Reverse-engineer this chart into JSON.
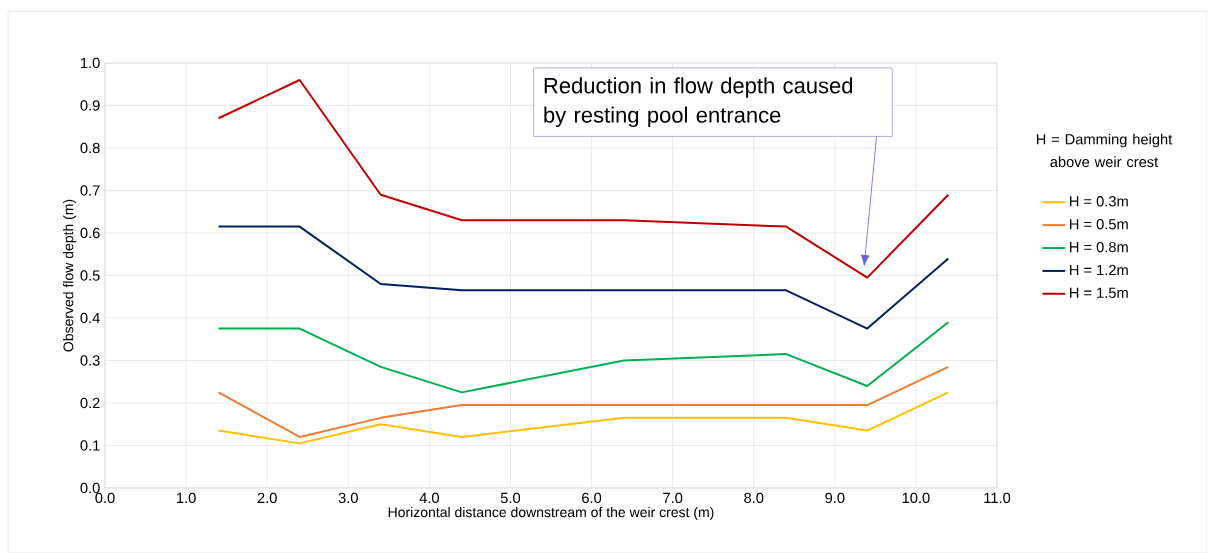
{
  "chart_data": {
    "type": "line",
    "xlabel": "Horizontal distance downstream of the weir crest (m)",
    "ylabel": "Observed flow depth (m)",
    "legend_title": "H = Damming height above weir crest",
    "x": [
      1.4,
      2.4,
      3.4,
      4.4,
      6.4,
      8.4,
      9.4,
      10.4
    ],
    "series": [
      {
        "name": "H = 0.3m",
        "color": "#ffc000",
        "values": [
          0.135,
          0.105,
          0.15,
          0.12,
          0.165,
          0.165,
          0.135,
          0.225
        ]
      },
      {
        "name": "H = 0.5m",
        "color": "#ed7d31",
        "values": [
          0.225,
          0.12,
          0.165,
          0.195,
          0.195,
          0.195,
          0.195,
          0.285
        ]
      },
      {
        "name": "H = 0.8m",
        "color": "#00b050",
        "values": [
          0.375,
          0.375,
          0.285,
          0.225,
          0.3,
          0.315,
          0.24,
          0.39
        ]
      },
      {
        "name": "H = 1.2m",
        "color": "#002060",
        "values": [
          0.615,
          0.615,
          0.48,
          0.465,
          0.465,
          0.465,
          0.375,
          0.54
        ]
      },
      {
        "name": "H = 1.5m",
        "color": "#c00000",
        "values": [
          0.87,
          0.96,
          0.69,
          0.63,
          0.63,
          0.615,
          0.495,
          0.69
        ]
      }
    ],
    "xlim": [
      0,
      11
    ],
    "xticks": [
      {
        "value": 0,
        "label": "0.0"
      },
      {
        "value": 1,
        "label": "1.0"
      },
      {
        "value": 2,
        "label": "2.0"
      },
      {
        "value": 3,
        "label": "3.0"
      },
      {
        "value": 4,
        "label": "4.0"
      },
      {
        "value": 5,
        "label": "5.0"
      },
      {
        "value": 6,
        "label": "6.0"
      },
      {
        "value": 7,
        "label": "7.0"
      },
      {
        "value": 8,
        "label": "8.0"
      },
      {
        "value": 9,
        "label": "9.0"
      },
      {
        "value": 10,
        "label": "10.0"
      },
      {
        "value": 11,
        "label": "11.0"
      }
    ],
    "ylim": [
      0,
      1
    ],
    "yticks": [
      {
        "value": 0,
        "label": "0.0"
      },
      {
        "value": 0.1,
        "label": "0.1"
      },
      {
        "value": 0.2,
        "label": "0.2"
      },
      {
        "value": 0.3,
        "label": "0.3"
      },
      {
        "value": 0.4,
        "label": "0.4"
      },
      {
        "value": 0.5,
        "label": "0.5"
      },
      {
        "value": 0.6,
        "label": "0.6"
      },
      {
        "value": 0.7,
        "label": "0.7"
      },
      {
        "value": 0.8,
        "label": "0.8"
      },
      {
        "value": 0.9,
        "label": "0.9"
      },
      {
        "value": 1.0,
        "label": "1.0"
      }
    ],
    "annotations": [
      "Reduction in flow depth caused by resting pool entrance"
    ],
    "grid": true,
    "legend": "right",
    "marker": "none",
    "line_style": "solid"
  }
}
